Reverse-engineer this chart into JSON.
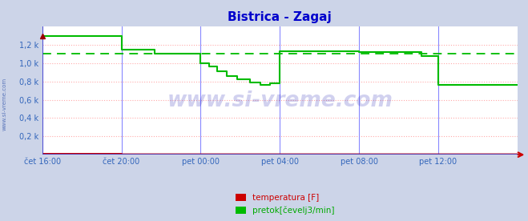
{
  "title": "Bistrica - Zagaj",
  "title_color": "#0000cc",
  "fig_bg_color": "#ccd4e8",
  "plot_bg_color": "#ffffff",
  "ylim": [
    0,
    1400
  ],
  "yticks": [
    200,
    400,
    600,
    800,
    1000,
    1200
  ],
  "ytick_labels": [
    "0,2 k",
    "0,4 k",
    "0,6 k",
    "0,8 k",
    "1,0 k",
    "1,2 k"
  ],
  "xtick_labels": [
    "čet 16:00",
    "čet 20:00",
    "pet 00:00",
    "pet 04:00",
    "pet 08:00",
    "pet 12:00"
  ],
  "xtick_positions": [
    0,
    240,
    480,
    720,
    960,
    1200
  ],
  "total_points": 1440,
  "green_line_color": "#00bb00",
  "red_line_color": "#cc0000",
  "dashed_line_color": "#00bb00",
  "dashed_line_value": 1100,
  "grid_color_v": "#8888ff",
  "grid_color_h": "#ffaaaa",
  "watermark_text": "www.si-vreme.com",
  "watermark_color": "#0000aa",
  "watermark_alpha": 0.18,
  "legend_temp_label": "temperatura [F]",
  "legend_flow_label": "pretok[čevelj3/min]",
  "side_label": "www.si-vreme.com",
  "side_label_color": "#3355aa",
  "green_data_x": [
    0,
    240,
    240,
    340,
    340,
    480,
    480,
    505,
    505,
    530,
    530,
    560,
    560,
    590,
    590,
    630,
    630,
    660,
    660,
    690,
    690,
    720,
    720,
    960,
    960,
    1150,
    1150,
    1200,
    1200,
    1440
  ],
  "green_data_y": [
    1300,
    1300,
    1150,
    1150,
    1100,
    1100,
    1000,
    1000,
    960,
    960,
    910,
    910,
    860,
    860,
    820,
    820,
    790,
    790,
    760,
    760,
    780,
    780,
    1130,
    1130,
    1120,
    1120,
    1080,
    1080,
    760,
    760
  ],
  "red_data_x": [
    0,
    240,
    241,
    1440
  ],
  "red_data_y": [
    10,
    10,
    5,
    5
  ]
}
